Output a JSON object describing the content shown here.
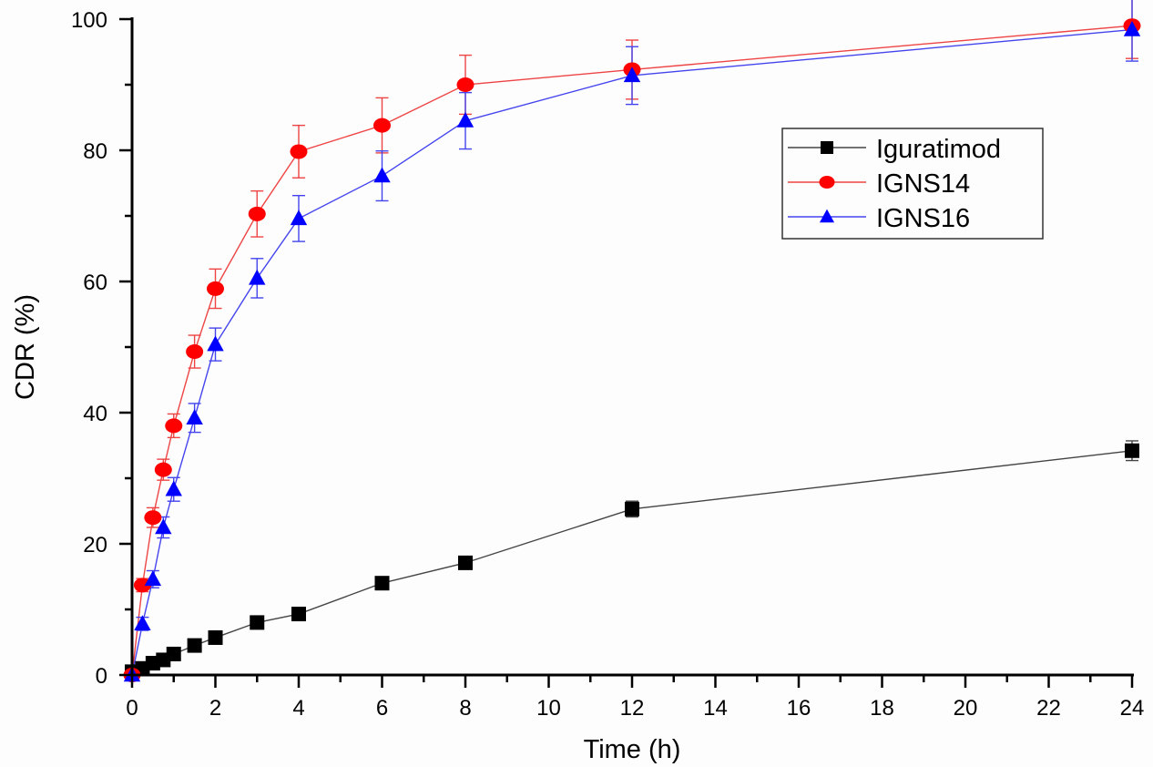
{
  "chart_data": {
    "type": "line",
    "title": "",
    "xlabel": "Time (h)",
    "ylabel": "CDR (%)",
    "xlim": [
      0,
      24
    ],
    "ylim": [
      0,
      100
    ],
    "x_ticks": [
      0,
      2,
      4,
      6,
      8,
      10,
      12,
      14,
      16,
      18,
      20,
      22,
      24
    ],
    "y_ticks": [
      0,
      20,
      40,
      60,
      80,
      100
    ],
    "grid": false,
    "legend_position": "top-right",
    "x": [
      0,
      0.25,
      0.5,
      0.75,
      1,
      1.5,
      2,
      3,
      4,
      6,
      8,
      12,
      24
    ],
    "series": [
      {
        "name": "Iguratimod",
        "color": "#000000",
        "marker": "square",
        "values": [
          0.5,
          1.0,
          1.8,
          2.3,
          3.2,
          4.5,
          5.7,
          8.0,
          9.3,
          14.0,
          17.1,
          25.3,
          34.2
        ],
        "errors": [
          0.2,
          0.3,
          0.3,
          0.3,
          0.4,
          0.4,
          0.5,
          0.5,
          0.5,
          0.6,
          0.7,
          1.2,
          1.5
        ]
      },
      {
        "name": "IGNS14",
        "color": "#ff0000",
        "marker": "circle",
        "values": [
          0.0,
          13.7,
          24.0,
          31.3,
          38.0,
          49.3,
          58.9,
          70.3,
          79.8,
          83.8,
          90.0,
          92.3,
          99.0
        ],
        "errors": [
          0.2,
          1.0,
          1.5,
          1.6,
          1.8,
          2.5,
          3.0,
          3.5,
          4.0,
          4.2,
          4.5,
          4.5,
          5.0
        ]
      },
      {
        "name": "IGNS16",
        "color": "#0000ff",
        "marker": "triangle",
        "values": [
          0.0,
          7.8,
          14.6,
          22.5,
          28.3,
          39.2,
          50.4,
          60.5,
          69.6,
          76.1,
          84.5,
          91.4,
          98.4
        ],
        "errors": [
          0.2,
          1.0,
          1.3,
          1.6,
          1.8,
          2.2,
          2.5,
          3.0,
          3.5,
          3.8,
          4.3,
          4.4,
          4.8
        ]
      }
    ]
  }
}
